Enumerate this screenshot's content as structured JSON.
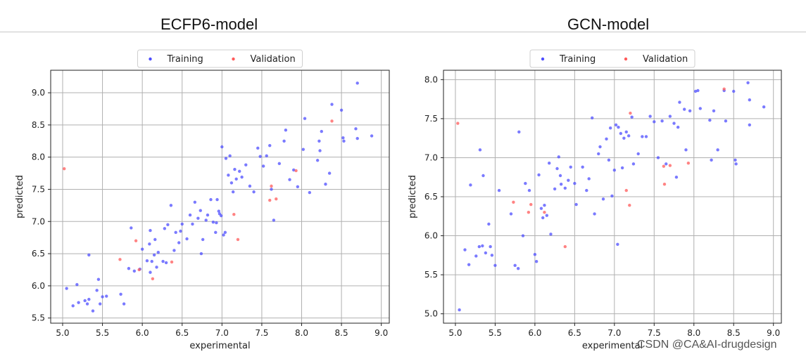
{
  "titles": {
    "left": "ECFP6-model",
    "right": "GCN-model"
  },
  "watermark": "CSDN @CA&AI-drugdesign",
  "colors": {
    "training": "#4d4dff",
    "validation": "#ff5a5a",
    "grid": "#b0b0b0"
  },
  "chart_data": [
    {
      "type": "scatter",
      "title": "ECFP6-model",
      "xlabel": "experimental",
      "ylabel": "predicted",
      "xlim": [
        4.85,
        9.1
      ],
      "ylim": [
        5.42,
        9.35
      ],
      "xticks": [
        "5.0",
        "5.5",
        "6.0",
        "6.5",
        "7.0",
        "7.5",
        "8.0",
        "8.5",
        "9.0"
      ],
      "yticks": [
        "5.5",
        "6.0",
        "6.5",
        "7.0",
        "7.5",
        "8.0",
        "8.5",
        "9.0"
      ],
      "grid": true,
      "legend": "top-center",
      "series": [
        {
          "name": "Training",
          "points": [
            [
              5.05,
              5.96
            ],
            [
              5.13,
              5.69
            ],
            [
              5.18,
              6.02
            ],
            [
              5.2,
              5.74
            ],
            [
              5.28,
              5.77
            ],
            [
              5.31,
              5.72
            ],
            [
              5.33,
              5.79
            ],
            [
              5.33,
              6.48
            ],
            [
              5.38,
              5.61
            ],
            [
              5.43,
              5.93
            ],
            [
              5.45,
              6.1
            ],
            [
              5.47,
              5.72
            ],
            [
              5.5,
              5.83
            ],
            [
              5.55,
              5.84
            ],
            [
              5.73,
              5.87
            ],
            [
              5.77,
              5.72
            ],
            [
              5.83,
              6.27
            ],
            [
              5.86,
              6.9
            ],
            [
              5.9,
              6.23
            ],
            [
              5.97,
              6.26
            ],
            [
              6.0,
              6.57
            ],
            [
              6.06,
              6.39
            ],
            [
              6.09,
              6.65
            ],
            [
              6.1,
              6.86
            ],
            [
              6.1,
              6.21
            ],
            [
              6.12,
              6.38
            ],
            [
              6.15,
              6.48
            ],
            [
              6.16,
              6.72
            ],
            [
              6.18,
              6.29
            ],
            [
              6.2,
              6.52
            ],
            [
              6.26,
              6.38
            ],
            [
              6.28,
              6.89
            ],
            [
              6.3,
              6.36
            ],
            [
              6.32,
              6.95
            ],
            [
              6.36,
              7.25
            ],
            [
              6.4,
              6.55
            ],
            [
              6.42,
              6.83
            ],
            [
              6.46,
              6.67
            ],
            [
              6.48,
              6.85
            ],
            [
              6.5,
              6.96
            ],
            [
              6.56,
              6.73
            ],
            [
              6.6,
              7.1
            ],
            [
              6.63,
              6.96
            ],
            [
              6.66,
              7.3
            ],
            [
              6.7,
              7.05
            ],
            [
              6.73,
              7.17
            ],
            [
              6.74,
              6.5
            ],
            [
              6.76,
              6.72
            ],
            [
              6.8,
              7.02
            ],
            [
              6.82,
              7.1
            ],
            [
              6.86,
              7.34
            ],
            [
              6.89,
              6.99
            ],
            [
              6.92,
              6.83
            ],
            [
              6.93,
              6.98
            ],
            [
              6.94,
              7.34
            ],
            [
              6.96,
              7.16
            ],
            [
              6.97,
              7.12
            ],
            [
              6.99,
              7.09
            ],
            [
              7.0,
              8.16
            ],
            [
              7.02,
              6.79
            ],
            [
              7.04,
              6.83
            ],
            [
              7.05,
              7.98
            ],
            [
              7.08,
              7.72
            ],
            [
              7.1,
              8.02
            ],
            [
              7.12,
              7.6
            ],
            [
              7.14,
              7.46
            ],
            [
              7.16,
              7.81
            ],
            [
              7.18,
              7.66
            ],
            [
              7.22,
              7.78
            ],
            [
              7.25,
              7.69
            ],
            [
              7.3,
              7.88
            ],
            [
              7.35,
              7.55
            ],
            [
              7.4,
              7.46
            ],
            [
              7.45,
              8.14
            ],
            [
              7.48,
              8.01
            ],
            [
              7.52,
              7.86
            ],
            [
              7.56,
              8.02
            ],
            [
              7.6,
              8.18
            ],
            [
              7.62,
              7.5
            ],
            [
              7.65,
              7.02
            ],
            [
              7.72,
              7.9
            ],
            [
              7.78,
              8.25
            ],
            [
              7.8,
              8.42
            ],
            [
              7.85,
              7.65
            ],
            [
              7.9,
              7.8
            ],
            [
              7.95,
              7.54
            ],
            [
              8.02,
              8.12
            ],
            [
              8.04,
              8.6
            ],
            [
              8.1,
              7.45
            ],
            [
              8.2,
              7.95
            ],
            [
              8.22,
              8.25
            ],
            [
              8.23,
              8.1
            ],
            [
              8.25,
              8.4
            ],
            [
              8.3,
              7.58
            ],
            [
              8.35,
              7.75
            ],
            [
              8.38,
              8.82
            ],
            [
              8.5,
              8.73
            ],
            [
              8.52,
              8.3
            ],
            [
              8.53,
              8.25
            ],
            [
              8.68,
              8.44
            ],
            [
              8.7,
              8.29
            ],
            [
              8.7,
              9.15
            ],
            [
              8.88,
              8.33
            ]
          ]
        },
        {
          "name": "Validation",
          "points": [
            [
              5.02,
              7.82
            ],
            [
              5.72,
              6.41
            ],
            [
              5.92,
              6.7
            ],
            [
              5.96,
              6.25
            ],
            [
              6.13,
              6.11
            ],
            [
              6.37,
              6.37
            ],
            [
              7.15,
              7.11
            ],
            [
              7.2,
              6.72
            ],
            [
              7.6,
              7.33
            ],
            [
              7.62,
              7.55
            ],
            [
              7.68,
              7.35
            ],
            [
              7.93,
              7.79
            ],
            [
              8.38,
              8.56
            ]
          ]
        }
      ]
    },
    {
      "type": "scatter",
      "title": "GCN-model",
      "xlabel": "experimental",
      "ylabel": "predicted",
      "xlim": [
        4.85,
        9.1
      ],
      "ylim": [
        4.88,
        8.12
      ],
      "xticks": [
        "5.0",
        "5.5",
        "6.0",
        "6.5",
        "7.0",
        "7.5",
        "8.0",
        "8.5",
        "9.0"
      ],
      "yticks": [
        "5.0",
        "5.5",
        "6.0",
        "6.5",
        "7.0",
        "7.5",
        "8.0"
      ],
      "grid": true,
      "legend": "top-center",
      "series": [
        {
          "name": "Training",
          "points": [
            [
              5.05,
              5.05
            ],
            [
              5.12,
              5.82
            ],
            [
              5.17,
              5.63
            ],
            [
              5.19,
              6.65
            ],
            [
              5.26,
              5.74
            ],
            [
              5.3,
              5.86
            ],
            [
              5.31,
              7.1
            ],
            [
              5.34,
              5.87
            ],
            [
              5.35,
              6.77
            ],
            [
              5.38,
              5.78
            ],
            [
              5.42,
              6.15
            ],
            [
              5.44,
              5.86
            ],
            [
              5.46,
              5.75
            ],
            [
              5.5,
              5.62
            ],
            [
              5.55,
              6.58
            ],
            [
              5.7,
              6.28
            ],
            [
              5.75,
              5.62
            ],
            [
              5.79,
              5.58
            ],
            [
              5.8,
              7.33
            ],
            [
              5.85,
              6.0
            ],
            [
              5.88,
              6.67
            ],
            [
              5.93,
              6.58
            ],
            [
              6.0,
              5.76
            ],
            [
              6.02,
              5.67
            ],
            [
              6.05,
              6.78
            ],
            [
              6.08,
              6.35
            ],
            [
              6.1,
              6.23
            ],
            [
              6.12,
              6.39
            ],
            [
              6.15,
              6.26
            ],
            [
              6.18,
              6.93
            ],
            [
              6.2,
              6.02
            ],
            [
              6.25,
              6.6
            ],
            [
              6.28,
              6.86
            ],
            [
              6.3,
              7.01
            ],
            [
              6.32,
              6.77
            ],
            [
              6.33,
              6.66
            ],
            [
              6.38,
              6.61
            ],
            [
              6.42,
              6.71
            ],
            [
              6.45,
              6.88
            ],
            [
              6.5,
              6.67
            ],
            [
              6.52,
              6.4
            ],
            [
              6.6,
              6.88
            ],
            [
              6.65,
              6.58
            ],
            [
              6.68,
              6.73
            ],
            [
              6.72,
              7.51
            ],
            [
              6.75,
              6.28
            ],
            [
              6.8,
              7.05
            ],
            [
              6.82,
              7.14
            ],
            [
              6.86,
              6.47
            ],
            [
              6.9,
              7.24
            ],
            [
              6.93,
              6.97
            ],
            [
              6.95,
              7.38
            ],
            [
              6.97,
              6.51
            ],
            [
              7.0,
              6.84
            ],
            [
              7.02,
              7.42
            ],
            [
              7.04,
              5.89
            ],
            [
              7.05,
              7.39
            ],
            [
              7.08,
              7.31
            ],
            [
              7.1,
              6.87
            ],
            [
              7.12,
              7.25
            ],
            [
              7.15,
              7.33
            ],
            [
              7.18,
              7.28
            ],
            [
              7.22,
              7.52
            ],
            [
              7.24,
              6.92
            ],
            [
              7.3,
              7.05
            ],
            [
              7.35,
              7.27
            ],
            [
              7.4,
              7.27
            ],
            [
              7.45,
              7.53
            ],
            [
              7.5,
              7.46
            ],
            [
              7.55,
              7.0
            ],
            [
              7.6,
              7.47
            ],
            [
              7.65,
              6.92
            ],
            [
              7.7,
              7.53
            ],
            [
              7.75,
              7.44
            ],
            [
              7.78,
              6.75
            ],
            [
              7.8,
              7.39
            ],
            [
              7.82,
              7.71
            ],
            [
              7.88,
              7.62
            ],
            [
              7.9,
              7.1
            ],
            [
              7.95,
              7.6
            ],
            [
              8.02,
              7.85
            ],
            [
              8.05,
              7.86
            ],
            [
              8.08,
              7.63
            ],
            [
              8.2,
              7.48
            ],
            [
              8.22,
              6.97
            ],
            [
              8.25,
              7.6
            ],
            [
              8.3,
              7.1
            ],
            [
              8.38,
              7.86
            ],
            [
              8.4,
              7.47
            ],
            [
              8.5,
              7.85
            ],
            [
              8.52,
              6.97
            ],
            [
              8.53,
              6.92
            ],
            [
              8.68,
              7.96
            ],
            [
              8.7,
              7.74
            ],
            [
              8.7,
              7.42
            ],
            [
              8.88,
              7.65
            ]
          ]
        },
        {
          "name": "Validation",
          "points": [
            [
              5.03,
              7.44
            ],
            [
              5.73,
              6.43
            ],
            [
              5.92,
              6.3
            ],
            [
              5.95,
              6.4
            ],
            [
              6.12,
              6.3
            ],
            [
              6.38,
              5.86
            ],
            [
              7.15,
              6.58
            ],
            [
              7.19,
              6.39
            ],
            [
              7.2,
              7.57
            ],
            [
              7.62,
              6.89
            ],
            [
              7.63,
              6.66
            ],
            [
              7.7,
              6.9
            ],
            [
              7.93,
              6.93
            ],
            [
              8.38,
              7.88
            ]
          ]
        }
      ]
    }
  ],
  "legend_labels": [
    "Training",
    "Validation"
  ]
}
